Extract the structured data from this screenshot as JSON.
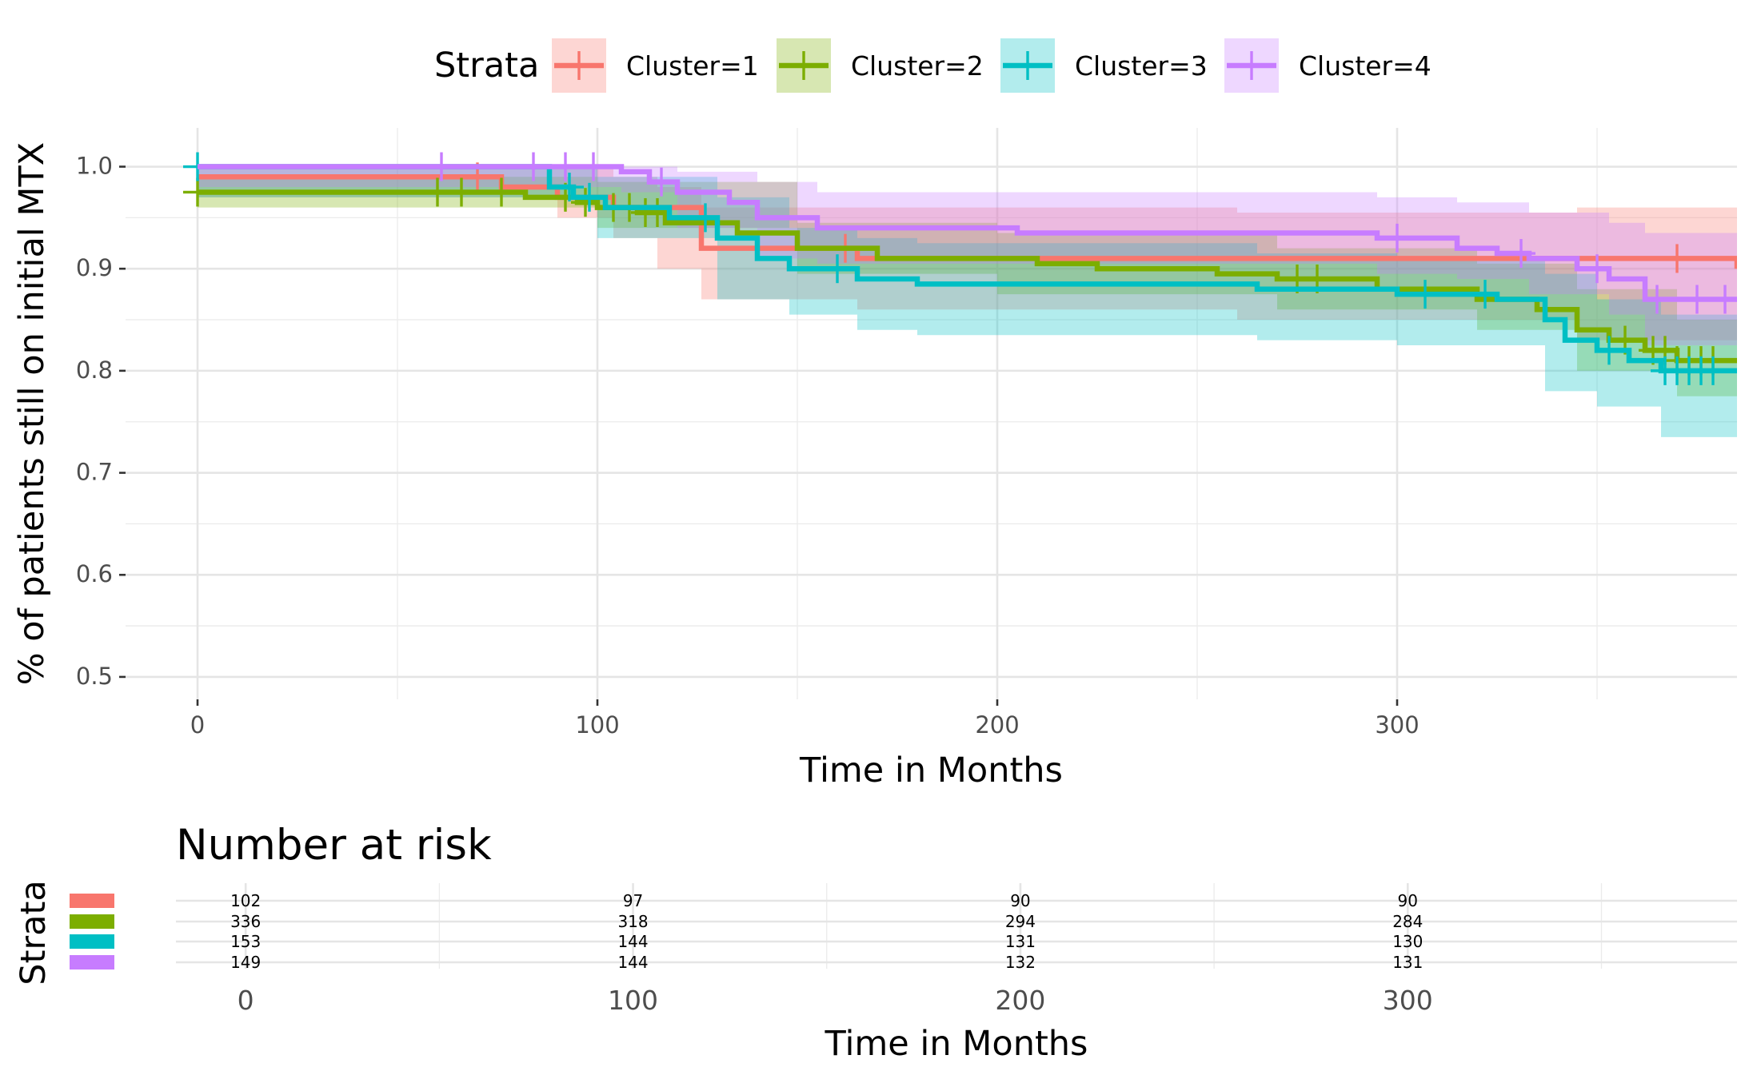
{
  "chart_data": [
    {
      "type": "line",
      "subtype": "kaplan-meier",
      "title": "",
      "xlabel": "Time in Months",
      "ylabel": "% of patients still on initial MTX",
      "xlim": [
        -18,
        385
      ],
      "ylim": [
        0.478,
        1.038
      ],
      "x_ticks": [
        0,
        100,
        200,
        300
      ],
      "y_ticks": [
        0.5,
        0.6,
        0.7,
        0.8,
        0.9,
        1.0
      ],
      "y_tick_labels": [
        "0.5",
        "0.6",
        "0.7",
        "0.8",
        "0.9",
        "1.0"
      ],
      "grid": true,
      "legend_title": "Strata",
      "legend_position": "top",
      "series": [
        {
          "name": "Cluster=1",
          "color": "#F8766D",
          "steps": [
            [
              0,
              0.99
            ],
            [
              76,
              0.98
            ],
            [
              90,
              0.97
            ],
            [
              104,
              0.96
            ],
            [
              126,
              0.92
            ],
            [
              165,
              0.91
            ],
            [
              385,
              0.9
            ]
          ],
          "band": [
            [
              0,
              0.97,
              1.0
            ],
            [
              90,
              0.95,
              1.0
            ],
            [
              104,
              0.93,
              0.99
            ],
            [
              115,
              0.9,
              0.98
            ],
            [
              126,
              0.87,
              0.96
            ],
            [
              165,
              0.86,
              0.96
            ],
            [
              260,
              0.85,
              0.955
            ],
            [
              345,
              0.83,
              0.96
            ],
            [
              385,
              0.83,
              0.96
            ]
          ],
          "censor_x": [
            70,
            162,
            370
          ]
        },
        {
          "name": "Cluster=2",
          "color": "#7CAE00",
          "steps": [
            [
              0,
              0.975
            ],
            [
              82,
              0.97
            ],
            [
              95,
              0.965
            ],
            [
              100,
              0.96
            ],
            [
              110,
              0.955
            ],
            [
              117,
              0.945
            ],
            [
              135,
              0.935
            ],
            [
              150,
              0.92
            ],
            [
              170,
              0.91
            ],
            [
              210,
              0.905
            ],
            [
              225,
              0.9
            ],
            [
              255,
              0.895
            ],
            [
              270,
              0.89
            ],
            [
              295,
              0.88
            ],
            [
              320,
              0.87
            ],
            [
              335,
              0.86
            ],
            [
              345,
              0.84
            ],
            [
              353,
              0.83
            ],
            [
              362,
              0.82
            ],
            [
              370,
              0.81
            ],
            [
              385,
              0.81
            ]
          ],
          "band": [
            [
              0,
              0.96,
              0.99
            ],
            [
              100,
              0.94,
              0.985
            ],
            [
              150,
              0.895,
              0.945
            ],
            [
              200,
              0.875,
              0.935
            ],
            [
              270,
              0.86,
              0.92
            ],
            [
              320,
              0.84,
              0.905
            ],
            [
              345,
              0.8,
              0.88
            ],
            [
              370,
              0.775,
              0.85
            ],
            [
              385,
              0.775,
              0.85
            ]
          ],
          "censor_x": [
            0,
            60,
            66,
            76,
            92,
            97,
            104,
            108,
            112,
            115,
            275,
            280,
            357,
            364,
            367,
            370,
            373,
            376,
            379
          ]
        },
        {
          "name": "Cluster=3",
          "color": "#00BFC4",
          "steps": [
            [
              0,
              1.0
            ],
            [
              88,
              0.98
            ],
            [
              94,
              0.97
            ],
            [
              102,
              0.96
            ],
            [
              118,
              0.95
            ],
            [
              130,
              0.93
            ],
            [
              140,
              0.91
            ],
            [
              148,
              0.9
            ],
            [
              165,
              0.89
            ],
            [
              180,
              0.885
            ],
            [
              265,
              0.88
            ],
            [
              300,
              0.875
            ],
            [
              325,
              0.87
            ],
            [
              337,
              0.85
            ],
            [
              342,
              0.83
            ],
            [
              350,
              0.82
            ],
            [
              358,
              0.81
            ],
            [
              366,
              0.8
            ],
            [
              385,
              0.8
            ]
          ],
          "band": [
            [
              0,
              0.97,
              1.0
            ],
            [
              100,
              0.93,
              0.99
            ],
            [
              130,
              0.87,
              0.97
            ],
            [
              148,
              0.855,
              0.94
            ],
            [
              165,
              0.84,
              0.93
            ],
            [
              180,
              0.835,
              0.925
            ],
            [
              265,
              0.83,
              0.915
            ],
            [
              300,
              0.825,
              0.91
            ],
            [
              337,
              0.78,
              0.895
            ],
            [
              350,
              0.765,
              0.87
            ],
            [
              366,
              0.735,
              0.855
            ],
            [
              385,
              0.735,
              0.855
            ]
          ],
          "censor_x": [
            0,
            93,
            98,
            127,
            160,
            307,
            322,
            353,
            367,
            370,
            373,
            376,
            379
          ]
        },
        {
          "name": "Cluster=4",
          "color": "#C77CFF",
          "steps": [
            [
              0,
              1.0
            ],
            [
              106,
              0.995
            ],
            [
              113,
              0.985
            ],
            [
              120,
              0.975
            ],
            [
              133,
              0.965
            ],
            [
              140,
              0.95
            ],
            [
              155,
              0.94
            ],
            [
              205,
              0.935
            ],
            [
              295,
              0.93
            ],
            [
              315,
              0.92
            ],
            [
              325,
              0.915
            ],
            [
              333,
              0.91
            ],
            [
              345,
              0.9
            ],
            [
              353,
              0.89
            ],
            [
              362,
              0.87
            ],
            [
              385,
              0.87
            ]
          ],
          "band": [
            [
              0,
              0.98,
              1.0
            ],
            [
              106,
              0.975,
              1.0
            ],
            [
              120,
              0.94,
              0.995
            ],
            [
              140,
              0.91,
              0.985
            ],
            [
              155,
              0.905,
              0.975
            ],
            [
              205,
              0.905,
              0.975
            ],
            [
              295,
              0.895,
              0.97
            ],
            [
              315,
              0.89,
              0.965
            ],
            [
              333,
              0.875,
              0.955
            ],
            [
              353,
              0.855,
              0.945
            ],
            [
              362,
              0.825,
              0.935
            ],
            [
              385,
              0.825,
              0.935
            ]
          ],
          "censor_x": [
            61,
            84,
            92,
            99,
            116,
            300,
            331,
            350,
            365,
            375,
            382
          ]
        }
      ]
    },
    {
      "type": "table",
      "title": "Number at risk",
      "xlabel": "Time in Months",
      "ylabel": "Strata",
      "xlim": [
        -18,
        385
      ],
      "x_ticks": [
        0,
        100,
        200,
        300
      ],
      "columns": [
        0,
        100,
        200,
        300
      ],
      "rows": [
        {
          "strata": "Cluster=1",
          "color": "#F8766D",
          "values": [
            "102",
            "97",
            "90",
            "90"
          ]
        },
        {
          "strata": "Cluster=2",
          "color": "#7CAE00",
          "values": [
            "336",
            "318",
            "294",
            "284"
          ]
        },
        {
          "strata": "Cluster=3",
          "color": "#00BFC4",
          "values": [
            "153",
            "144",
            "131",
            "130"
          ]
        },
        {
          "strata": "Cluster=4",
          "color": "#C77CFF",
          "values": [
            "149",
            "144",
            "132",
            "131"
          ]
        }
      ]
    }
  ]
}
